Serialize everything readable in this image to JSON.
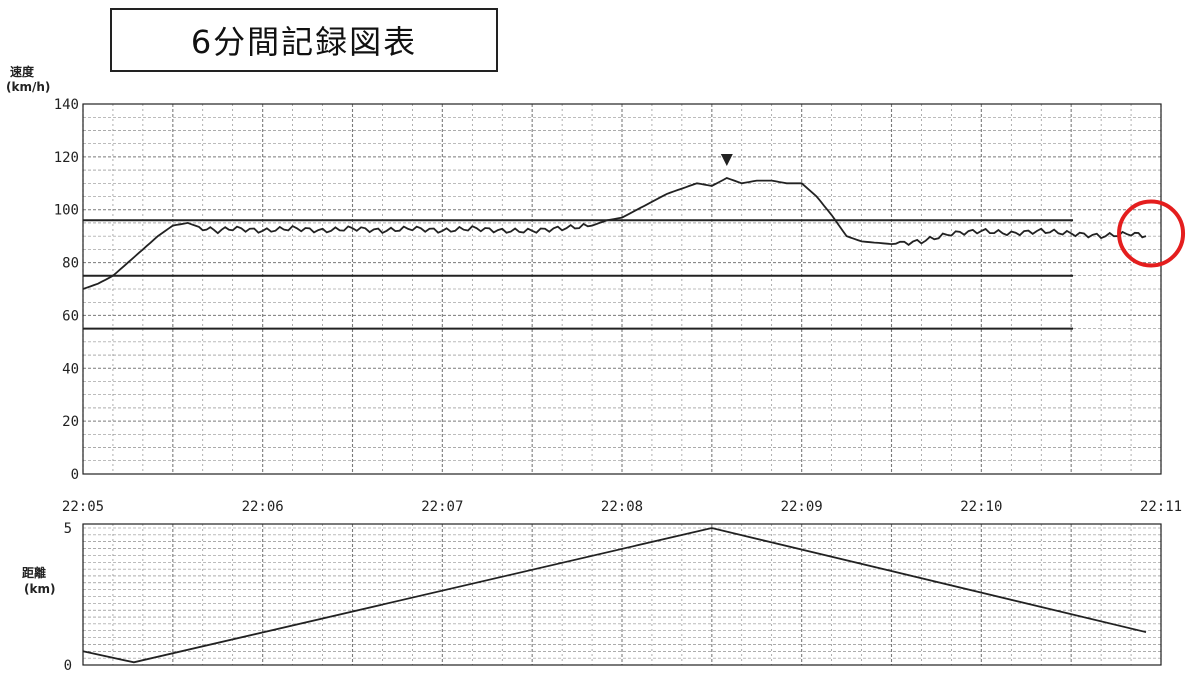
{
  "title": "6分間記録図表",
  "colors": {
    "ink": "#222222",
    "grid": "#7a7a7a",
    "highlight": "#e41e1e"
  },
  "chart_data": [
    {
      "type": "line",
      "ylabel_line1": "速度",
      "ylabel_line2": "(km/h)",
      "ylim": [
        0,
        140
      ],
      "yticks": [
        "0",
        "20",
        "40",
        "60",
        "80",
        "100",
        "120",
        "140"
      ],
      "reference_lines": [
        96,
        75,
        55
      ],
      "marker": {
        "type": "triangle",
        "x": "22:08:35"
      },
      "highlight": {
        "type": "circle",
        "x": "22:10:50",
        "y": 91
      },
      "series": [
        {
          "x": [
            "22:05:00",
            "22:05:05",
            "22:05:10",
            "22:05:15",
            "22:05:20",
            "22:05:25",
            "22:05:30",
            "22:05:35",
            "22:05:40",
            "22:05:45",
            "22:05:50",
            "22:06:00",
            "22:06:10",
            "22:06:20",
            "22:06:30",
            "22:06:40",
            "22:06:50",
            "22:07:00",
            "22:07:10",
            "22:07:20",
            "22:07:30",
            "22:07:40",
            "22:07:50",
            "22:07:55",
            "22:08:00",
            "22:08:05",
            "22:08:10",
            "22:08:15",
            "22:08:20",
            "22:08:25",
            "22:08:30",
            "22:08:35",
            "22:08:40",
            "22:08:45",
            "22:08:50",
            "22:08:55",
            "22:09:00",
            "22:09:05",
            "22:09:10",
            "22:09:15",
            "22:09:20",
            "22:09:30",
            "22:09:40",
            "22:09:50",
            "22:10:00",
            "22:10:10",
            "22:10:20",
            "22:10:30",
            "22:10:40",
            "22:10:50",
            "22:10:55"
          ],
          "values": [
            70,
            72,
            75,
            80,
            85,
            90,
            94,
            95,
            93,
            92,
            93,
            92,
            93,
            92,
            93,
            92,
            93,
            92,
            93,
            92,
            92,
            93,
            94,
            96,
            97,
            100,
            103,
            106,
            108,
            110,
            109,
            112,
            110,
            111,
            111,
            110,
            110,
            105,
            98,
            90,
            88,
            87,
            88,
            91,
            92,
            91,
            92,
            91,
            90,
            91,
            90
          ]
        }
      ]
    },
    {
      "type": "line",
      "ylabel_line1": "距離",
      "ylabel_line2": "(km)",
      "ylim": [
        0,
        5
      ],
      "yticks": [
        "0",
        "5"
      ],
      "xticks": [
        "22:05",
        "22:06",
        "22:07",
        "22:08",
        "22:09",
        "22:10",
        "22:11"
      ],
      "series": [
        {
          "x": [
            "22:05:00",
            "22:05:17",
            "22:08:30",
            "22:10:55"
          ],
          "values": [
            0.5,
            0.1,
            5.0,
            1.2
          ]
        }
      ]
    }
  ]
}
